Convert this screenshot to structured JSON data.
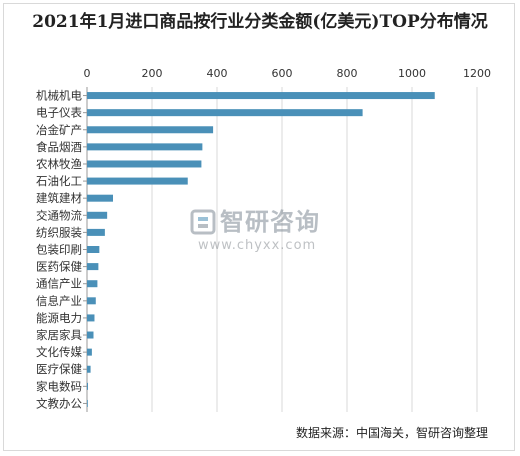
{
  "title": "2021年1月进口商品按行业分类金额(亿美元)TOP分布情况",
  "source": "数据来源：中国海关，智研咨询整理",
  "watermark": {
    "name": "智研咨询",
    "url": "www.chyxx.com"
  },
  "colors": {
    "bar": "#4a90b8",
    "grid": "#d9d9d9",
    "axis": "#999999",
    "text": "#333333"
  },
  "chart_data": {
    "type": "bar",
    "orientation": "horizontal",
    "categories": [
      "机械机电",
      "电子仪表",
      "冶金矿产",
      "食品烟酒",
      "农林牧渔",
      "石油化工",
      "建筑建材",
      "交通物流",
      "纺织服装",
      "包装印刷",
      "医药保健",
      "通信产业",
      "信息产业",
      "能源电力",
      "家居家具",
      "文化传媒",
      "医疗保健",
      "家电数码",
      "文教办公"
    ],
    "values": [
      1070,
      848,
      388,
      355,
      352,
      310,
      80,
      62,
      55,
      38,
      35,
      32,
      27,
      23,
      20,
      15,
      11,
      3,
      2
    ],
    "xlim": [
      0,
      1200
    ],
    "xticks": [
      0,
      200,
      400,
      600,
      800,
      1000,
      1200
    ],
    "xaxis_position": "top",
    "grid": true,
    "legend": "none"
  }
}
